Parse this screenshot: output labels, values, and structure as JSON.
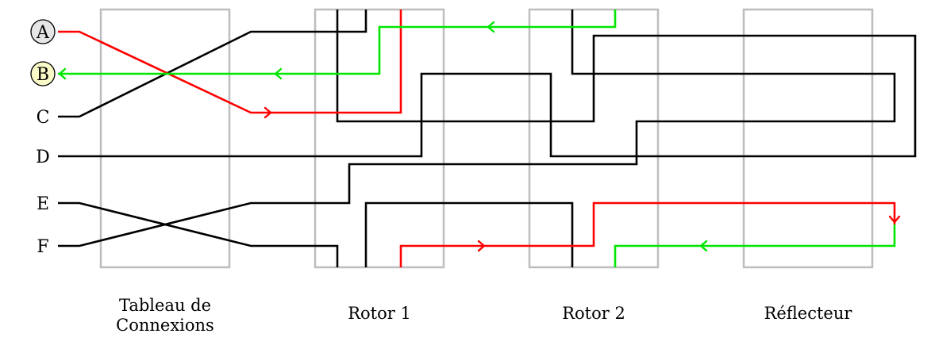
{
  "inputs": {
    "a": "A",
    "b": "B",
    "c": "C",
    "d": "D",
    "e": "E",
    "f": "F"
  },
  "components": {
    "plugboard": {
      "line1": "Tableau de",
      "line2": "Connexions"
    },
    "rotor1": "Rotor 1",
    "rotor2": "Rotor 2",
    "reflector": "Réflecteur"
  },
  "colors": {
    "box": "#bdbdbd",
    "wire": "#000000",
    "forward_path": "#ff0000",
    "return_path": "#00e600",
    "highlight_a": "#e6e6e6",
    "highlight_b": "#fafac8"
  }
}
